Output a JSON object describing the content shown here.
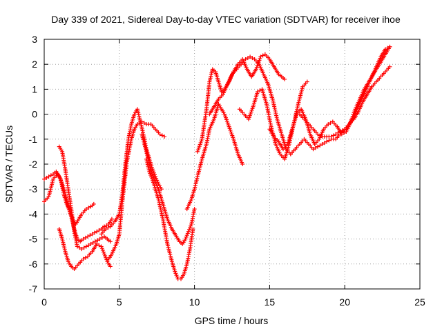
{
  "chart_data": {
    "type": "scatter",
    "title": "Day 339 of 2021, Sidereal Day-to-day VTEC variation (SDTVAR) for receiver ihoe",
    "xlabel": "GPS time / hours",
    "ylabel": "SDTVAR / TECUs",
    "xlim": [
      0,
      25
    ],
    "ylim": [
      -7,
      3
    ],
    "x_ticks": [
      "0",
      "5",
      "10",
      "15",
      "20",
      "25"
    ],
    "y_ticks": [
      "-7",
      "-6",
      "-5",
      "-4",
      "-3",
      "-2",
      "-1",
      "0",
      "1",
      "2",
      "3"
    ],
    "grid": true,
    "marker": "plus",
    "color": "#ff0000",
    "series": [
      {
        "x": [
          0.0,
          0.3,
          0.6,
          0.9,
          1.1,
          1.3,
          1.5,
          1.7,
          1.9,
          2.1,
          2.3,
          2.5,
          2.8,
          3.1,
          3.3
        ],
        "y": [
          -3.5,
          -3.3,
          -2.6,
          -2.4,
          -2.6,
          -3.2,
          -3.6,
          -3.9,
          -4.2,
          -4.4,
          -4.2,
          -4.0,
          -3.8,
          -3.7,
          -3.6
        ]
      },
      {
        "x": [
          0.0,
          0.3,
          0.6,
          0.8,
          1.0,
          1.2,
          1.4,
          1.6,
          1.8,
          2.0,
          2.2,
          2.4,
          2.6,
          2.9,
          3.2,
          3.5,
          3.8,
          4.0,
          4.3,
          4.5
        ],
        "y": [
          -2.6,
          -2.5,
          -2.4,
          -2.3,
          -2.5,
          -2.8,
          -3.2,
          -3.7,
          -4.1,
          -4.6,
          -5.0,
          -5.1,
          -5.0,
          -4.9,
          -4.8,
          -4.7,
          -4.6,
          -4.5,
          -4.4,
          -4.2
        ]
      },
      {
        "x": [
          1.0,
          1.2,
          1.4,
          1.6,
          1.8,
          2.0,
          2.2,
          2.5,
          2.8,
          3.1,
          3.4,
          3.7,
          4.0,
          4.2,
          4.4
        ],
        "y": [
          -1.3,
          -1.5,
          -2.2,
          -3.0,
          -3.8,
          -4.7,
          -5.3,
          -5.4,
          -5.3,
          -5.2,
          -5.1,
          -5.0,
          -4.9,
          -5.0,
          -5.1
        ]
      },
      {
        "x": [
          1.0,
          1.2,
          1.4,
          1.6,
          1.8,
          2.0,
          2.3,
          2.6,
          2.9,
          3.2,
          3.5,
          3.8,
          4.0,
          4.2,
          4.4
        ],
        "y": [
          -4.6,
          -5.0,
          -5.5,
          -5.9,
          -6.1,
          -6.2,
          -6.0,
          -5.8,
          -5.7,
          -5.5,
          -5.2,
          -5.3,
          -5.6,
          -5.9,
          -6.1
        ]
      },
      {
        "x": [
          4.3,
          4.5,
          4.8,
          5.0,
          5.2,
          5.5,
          5.8,
          6.0,
          6.2,
          6.5,
          6.8,
          7.1,
          7.4,
          7.7,
          8.0
        ],
        "y": [
          -5.8,
          -5.6,
          -5.2,
          -4.8,
          -3.5,
          -1.9,
          -1.0,
          -0.6,
          -0.4,
          -0.3,
          -0.4,
          -0.4,
          -0.6,
          -0.8,
          -0.9
        ]
      },
      {
        "x": [
          3.8,
          4.1,
          4.4,
          4.7,
          5.0,
          5.2,
          5.4,
          5.6,
          5.8,
          6.0,
          6.2,
          6.4,
          6.6,
          6.8,
          7.0,
          7.2,
          7.4,
          7.6,
          7.8
        ],
        "y": [
          -4.8,
          -4.6,
          -4.5,
          -4.3,
          -4.0,
          -3.2,
          -2.0,
          -1.0,
          -0.4,
          0.0,
          0.2,
          -0.3,
          -0.8,
          -1.4,
          -1.8,
          -2.2,
          -2.5,
          -2.8,
          -3.0
        ]
      },
      {
        "x": [
          6.5,
          6.8,
          7.0,
          7.3,
          7.6,
          7.9,
          8.2,
          8.5,
          8.8,
          9.0,
          9.2,
          9.4,
          9.6,
          9.8,
          10.0
        ],
        "y": [
          -0.8,
          -1.5,
          -2.0,
          -2.6,
          -3.0,
          -3.6,
          -4.2,
          -4.6,
          -4.9,
          -5.1,
          -5.2,
          -5.0,
          -4.7,
          -4.4,
          -3.8
        ]
      },
      {
        "x": [
          6.8,
          7.0,
          7.3,
          7.6,
          7.9,
          8.2,
          8.5,
          8.7,
          8.9,
          9.1,
          9.3,
          9.5,
          9.7,
          9.9
        ],
        "y": [
          -1.8,
          -2.3,
          -2.8,
          -3.4,
          -4.2,
          -5.2,
          -5.9,
          -6.3,
          -6.6,
          -6.6,
          -6.4,
          -6.0,
          -5.4,
          -4.6
        ]
      },
      {
        "x": [
          9.5,
          9.8,
          10.0,
          10.2,
          10.5,
          10.8,
          11.0,
          11.3,
          11.6,
          12.0,
          12.3,
          12.6,
          12.9,
          13.2
        ],
        "y": [
          -3.8,
          -3.4,
          -3.0,
          -2.5,
          -1.8,
          -1.2,
          -0.6,
          -0.2,
          0.4,
          0.0,
          -0.5,
          -1.0,
          -1.6,
          -2.0
        ]
      },
      {
        "x": [
          10.2,
          10.5,
          10.8,
          11.0,
          11.2,
          11.4,
          11.6,
          11.8,
          12.0,
          12.3,
          12.6,
          12.9,
          13.2,
          13.5,
          13.8,
          14.1,
          14.4,
          14.7,
          15.0,
          15.3,
          15.6,
          16.0
        ],
        "y": [
          -1.5,
          -1.0,
          0.2,
          1.3,
          1.8,
          1.7,
          1.3,
          0.9,
          1.0,
          1.3,
          1.7,
          2.0,
          2.2,
          1.8,
          1.5,
          1.8,
          2.3,
          2.4,
          2.2,
          1.9,
          1.6,
          1.4
        ]
      },
      {
        "x": [
          11.0,
          11.3,
          11.6,
          11.9,
          12.2,
          12.5,
          12.8,
          13.1,
          13.4,
          13.7,
          14.0,
          14.3,
          14.6,
          14.9,
          15.2,
          15.5,
          15.8,
          16.1,
          16.4
        ],
        "y": [
          0.0,
          0.3,
          0.6,
          0.8,
          1.2,
          1.6,
          1.8,
          2.0,
          2.2,
          2.3,
          2.2,
          2.0,
          1.6,
          1.2,
          0.6,
          -0.2,
          -0.8,
          -1.4,
          -1.6
        ]
      },
      {
        "x": [
          13.0,
          13.3,
          13.6,
          13.9,
          14.2,
          14.5,
          14.8,
          15.1,
          15.4,
          15.7,
          16.0,
          16.3,
          16.6,
          16.9,
          17.2,
          17.5
        ],
        "y": [
          0.2,
          0.0,
          -0.2,
          0.3,
          0.9,
          1.0,
          0.4,
          -0.5,
          -1.2,
          -1.6,
          -1.8,
          -1.2,
          -0.4,
          0.4,
          1.1,
          1.3
        ]
      },
      {
        "x": [
          15.0,
          15.3,
          15.6,
          15.9,
          16.2,
          16.5,
          16.8,
          17.1,
          17.4,
          17.7,
          18.0,
          18.3,
          18.6,
          18.9,
          19.2,
          19.5,
          19.8,
          20.1,
          20.4,
          20.7,
          21.0,
          21.3,
          21.6,
          21.9,
          22.2,
          22.5,
          22.8,
          23.0
        ],
        "y": [
          -0.6,
          -0.9,
          -1.1,
          -1.4,
          -1.2,
          -0.6,
          0.0,
          0.2,
          -0.2,
          -0.8,
          -1.2,
          -1.0,
          -0.6,
          -0.4,
          -0.3,
          -0.5,
          -0.8,
          -0.7,
          -0.3,
          0.2,
          0.6,
          1.0,
          1.3,
          1.6,
          1.9,
          2.2,
          2.5,
          2.7
        ]
      },
      {
        "x": [
          16.4,
          16.7,
          17.0,
          17.3,
          17.6,
          17.9,
          18.2,
          18.5,
          18.8,
          19.1,
          19.4,
          19.7,
          20.0,
          20.3,
          20.6,
          20.9,
          21.2,
          21.5,
          21.8,
          22.1,
          22.4,
          22.7,
          23.0
        ],
        "y": [
          -1.6,
          -1.4,
          -1.2,
          -1.0,
          -1.2,
          -1.4,
          -1.3,
          -1.2,
          -1.1,
          -1.0,
          -1.0,
          -0.8,
          -0.6,
          -0.4,
          -0.2,
          0.1,
          0.5,
          0.8,
          1.1,
          1.3,
          1.5,
          1.7,
          1.9
        ]
      },
      {
        "x": [
          17.0,
          17.3,
          17.6,
          17.9,
          18.2,
          18.5,
          18.8,
          19.1,
          19.4,
          19.7,
          20.0,
          20.3,
          20.6,
          20.9,
          21.2,
          21.5,
          21.8,
          22.1,
          22.4,
          22.7,
          23.0
        ],
        "y": [
          0.0,
          -0.2,
          -0.4,
          -0.6,
          -0.8,
          -0.9,
          -0.9,
          -0.9,
          -0.8,
          -0.7,
          -0.6,
          -0.4,
          -0.1,
          0.3,
          0.7,
          1.1,
          1.5,
          1.9,
          2.3,
          2.6,
          2.7
        ]
      }
    ]
  }
}
